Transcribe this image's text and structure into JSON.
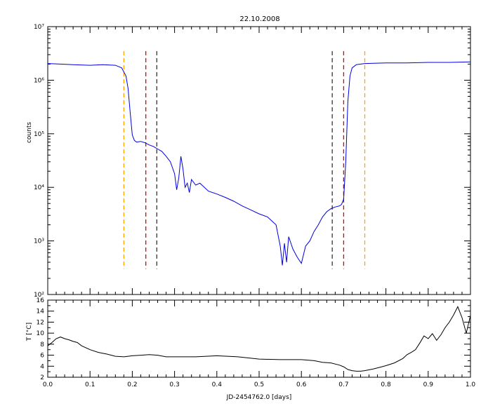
{
  "chart_data": [
    {
      "type": "line",
      "title": "22.10.2008",
      "ylabel": "counts",
      "yscale": "log",
      "xlim": [
        0.0,
        1.0
      ],
      "ylim": [
        100,
        10000000
      ],
      "y_ticks": [
        {
          "value": 100,
          "label": "10²"
        },
        {
          "value": 1000,
          "label": "10³"
        },
        {
          "value": 10000,
          "label": "10⁴"
        },
        {
          "value": 100000,
          "label": "10⁵"
        },
        {
          "value": 1000000,
          "label": "10⁶"
        },
        {
          "value": 10000000,
          "label": "10⁷"
        }
      ],
      "line_color": "#0000dd",
      "series": [
        {
          "x": [
            0.0,
            0.03,
            0.06,
            0.1,
            0.13,
            0.16,
            0.175,
            0.185,
            0.19,
            0.195,
            0.2,
            0.205,
            0.21,
            0.22,
            0.23,
            0.24,
            0.25,
            0.26,
            0.27,
            0.28,
            0.29,
            0.3,
            0.305,
            0.31,
            0.315,
            0.32,
            0.325,
            0.33,
            0.335,
            0.34,
            0.35,
            0.36,
            0.38,
            0.4,
            0.42,
            0.44,
            0.46,
            0.48,
            0.5,
            0.52,
            0.54,
            0.55,
            0.555,
            0.56,
            0.565,
            0.57,
            0.58,
            0.59,
            0.6,
            0.61,
            0.62,
            0.63,
            0.64,
            0.65,
            0.66,
            0.67,
            0.68,
            0.69,
            0.695,
            0.7,
            0.705,
            0.71,
            0.715,
            0.72,
            0.73,
            0.75,
            0.8,
            0.85,
            0.9,
            0.95,
            1.0
          ],
          "y": [
            2050000,
            2000000,
            1950000,
            1900000,
            1950000,
            1900000,
            1700000,
            1200000,
            700000,
            250000,
            95000,
            75000,
            70000,
            72000,
            68000,
            62000,
            58000,
            52000,
            47000,
            38000,
            30000,
            18000,
            9000,
            15000,
            38000,
            22000,
            10000,
            12000,
            8000,
            14000,
            11000,
            12000,
            8500,
            7500,
            6500,
            5500,
            4500,
            3800,
            3200,
            2800,
            2000,
            800,
            350,
            900,
            400,
            1200,
            700,
            500,
            380,
            800,
            1000,
            1500,
            2000,
            2800,
            3500,
            4000,
            4300,
            4500,
            4800,
            6000,
            30000,
            400000,
            1200000,
            1700000,
            1950000,
            2050000,
            2100000,
            2100000,
            2150000,
            2150000,
            2200000
          ]
        }
      ],
      "vertical_lines": [
        {
          "x": 0.18,
          "color": "#ffa500"
        },
        {
          "x": 0.232,
          "color": "#dd0000"
        },
        {
          "x": 0.258,
          "color": "#333333"
        },
        {
          "x": 0.673,
          "color": "#333333"
        },
        {
          "x": 0.7,
          "color": "#dd0000"
        },
        {
          "x": 0.75,
          "color": "#ffa500"
        }
      ],
      "vertical_lines_ylim": [
        300,
        3500000
      ]
    },
    {
      "type": "line",
      "ylabel": "T [°C]",
      "xlabel": "JD-2454762.0 [days]",
      "xlim": [
        0.0,
        1.0
      ],
      "ylim": [
        2,
        16
      ],
      "x_ticks": [
        "0.0",
        "0.1",
        "0.2",
        "0.3",
        "0.4",
        "0.5",
        "0.6",
        "0.7",
        "0.8",
        "0.9",
        "1.0"
      ],
      "y_ticks": [
        "2",
        "4",
        "6",
        "8",
        "10",
        "12",
        "14",
        "16"
      ],
      "line_color": "#000000",
      "series": [
        {
          "x": [
            0.0,
            0.01,
            0.02,
            0.03,
            0.04,
            0.05,
            0.06,
            0.07,
            0.08,
            0.1,
            0.12,
            0.14,
            0.16,
            0.18,
            0.2,
            0.22,
            0.24,
            0.26,
            0.28,
            0.3,
            0.35,
            0.4,
            0.45,
            0.5,
            0.55,
            0.6,
            0.63,
            0.65,
            0.67,
            0.69,
            0.7,
            0.71,
            0.72,
            0.73,
            0.74,
            0.75,
            0.77,
            0.79,
            0.8,
            0.82,
            0.84,
            0.85,
            0.86,
            0.87,
            0.88,
            0.89,
            0.9,
            0.91,
            0.92,
            0.93,
            0.94,
            0.95,
            0.96,
            0.97,
            0.98,
            0.99,
            1.0
          ],
          "y": [
            7.7,
            8.3,
            9.0,
            9.3,
            9.0,
            8.8,
            8.5,
            8.3,
            7.7,
            7.0,
            6.5,
            6.2,
            5.8,
            5.7,
            5.9,
            6.0,
            6.1,
            6.0,
            5.7,
            5.7,
            5.7,
            5.9,
            5.7,
            5.3,
            5.2,
            5.2,
            5.0,
            4.7,
            4.6,
            4.2,
            3.9,
            3.4,
            3.2,
            3.1,
            3.1,
            3.2,
            3.5,
            3.9,
            4.1,
            4.6,
            5.4,
            6.1,
            6.5,
            7.0,
            8.2,
            9.5,
            9.0,
            9.9,
            8.7,
            9.7,
            11.0,
            12.0,
            13.3,
            14.8,
            12.8,
            10.0,
            13.2
          ]
        }
      ]
    }
  ]
}
